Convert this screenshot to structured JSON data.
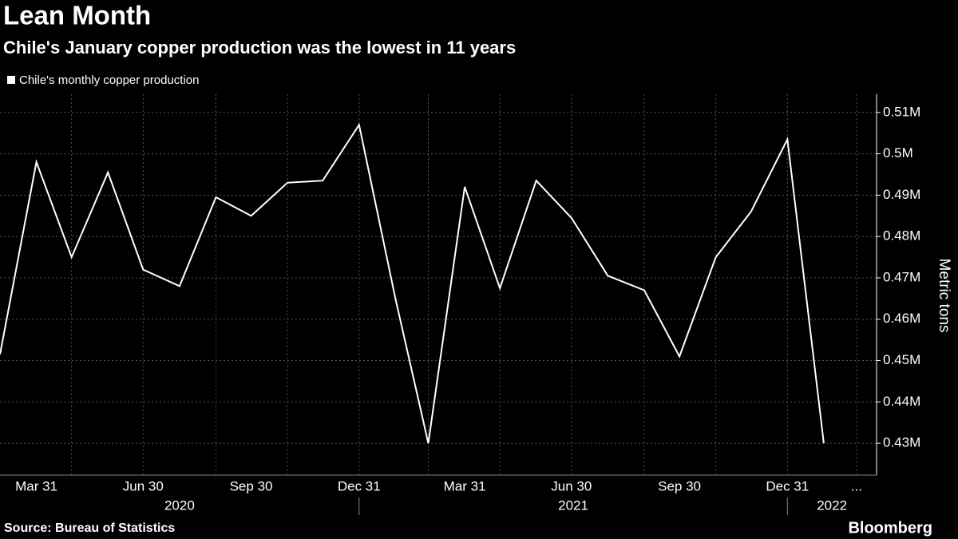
{
  "chart_data": {
    "type": "line",
    "title": "Lean Month",
    "subtitle": "Chile's January copper production was the lowest in 11 years",
    "y_label": "Metric tons",
    "source": "Source: Bureau of Statistics",
    "brand": "Bloomberg",
    "x": [
      "2020-02-29",
      "2020-03-31",
      "2020-04-30",
      "2020-05-31",
      "2020-06-30",
      "2020-07-31",
      "2020-08-31",
      "2020-09-30",
      "2020-10-31",
      "2020-11-30",
      "2020-12-31",
      "2021-01-31",
      "2021-02-28",
      "2021-03-31",
      "2021-04-30",
      "2021-05-31",
      "2021-06-30",
      "2021-07-31",
      "2021-08-31",
      "2021-09-30",
      "2021-10-31",
      "2021-11-30",
      "2021-12-31",
      "2022-01-31"
    ],
    "series": [
      {
        "name": "Chile's monthly copper production",
        "color": "#ffffff",
        "values": [
          451500,
          498000,
          475000,
          495500,
          472000,
          468000,
          489500,
          485000,
          493000,
          493500,
          507000,
          465000,
          430000,
          492000,
          467500,
          493500,
          484500,
          470500,
          467000,
          451000,
          475000,
          486000,
          503500,
          430000
        ]
      }
    ],
    "xlim": [
      "2020-02-29",
      "2022-03-17"
    ],
    "xticks": [
      {
        "value": "2020-03-31",
        "label": "Mar 31"
      },
      {
        "value": "2020-06-30",
        "label": "Jun 30"
      },
      {
        "value": "2020-09-30",
        "label": "Sep 30"
      },
      {
        "value": "2020-12-31",
        "label": "Dec 31"
      },
      {
        "value": "2021-03-31",
        "label": "Mar 31"
      },
      {
        "value": "2021-06-30",
        "label": "Jun 30"
      },
      {
        "value": "2021-09-30",
        "label": "Sep 30"
      },
      {
        "value": "2021-12-31",
        "label": "Dec 31"
      },
      {
        "value": "2022-02-28",
        "label": "..."
      }
    ],
    "xgrid": [
      "2020-04-30",
      "2020-06-30",
      "2020-08-31",
      "2020-10-31",
      "2020-12-31",
      "2021-02-28",
      "2021-04-30",
      "2021-06-30",
      "2021-08-31",
      "2021-10-31",
      "2021-12-31",
      "2022-02-28"
    ],
    "x_groups": [
      {
        "label": "2020",
        "start": "2020-02-29",
        "end": "2020-12-31"
      },
      {
        "label": "2021",
        "start": "2020-12-31",
        "end": "2021-12-31"
      },
      {
        "label": "2022",
        "start": "2021-12-31",
        "end": "2022-03-17"
      }
    ],
    "ylim": [
      422300,
      514400
    ],
    "yticks": [
      {
        "value": 430000,
        "label": "0.43M"
      },
      {
        "value": 440000,
        "label": "0.44M"
      },
      {
        "value": 450000,
        "label": "0.45M"
      },
      {
        "value": 460000,
        "label": "0.46M"
      },
      {
        "value": 470000,
        "label": "0.47M"
      },
      {
        "value": 480000,
        "label": "0.48M"
      },
      {
        "value": 490000,
        "label": "0.49M"
      },
      {
        "value": 500000,
        "label": "0.5M"
      },
      {
        "value": 510000,
        "label": "0.51M"
      }
    ],
    "grid": true,
    "y_axis_side": "right"
  }
}
